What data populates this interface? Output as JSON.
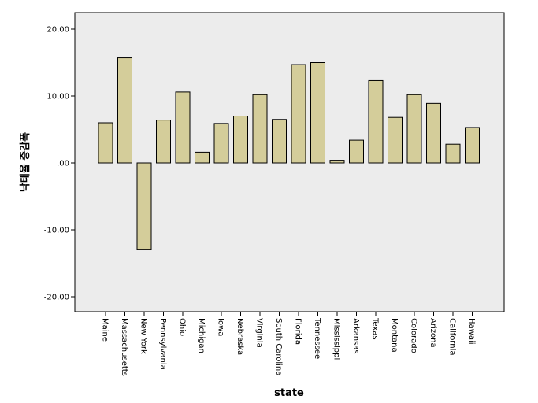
{
  "chart_data": {
    "type": "bar",
    "title": "",
    "xlabel": "state",
    "ylabel": "낙태율 증감폭",
    "categories": [
      "Maine",
      "Massachusetts",
      "New York",
      "Pennsylvania",
      "Ohio",
      "Michigan",
      "Iowa",
      "Nebraska",
      "Virginia",
      "South Carolina",
      "Florida",
      "Tennessee",
      "Mississippi",
      "Arkansas",
      "Texas",
      "Montana",
      "Colorado",
      "Arizona",
      "California",
      "Hawaii"
    ],
    "values": [
      6.0,
      15.7,
      -12.9,
      6.4,
      10.6,
      1.6,
      5.9,
      7.0,
      10.2,
      6.5,
      14.7,
      15.0,
      0.4,
      3.4,
      12.3,
      6.8,
      10.2,
      8.9,
      2.8,
      5.3
    ],
    "yticks": [
      "20.00",
      "10.00",
      ".00",
      "-10.00",
      "-20.00"
    ],
    "ytick_values": [
      20,
      10,
      0,
      -10,
      -20
    ],
    "ylim": [
      -22,
      22
    ],
    "bar_color": "#d4cd9a",
    "plot_background": "#ececec",
    "grid": false
  }
}
